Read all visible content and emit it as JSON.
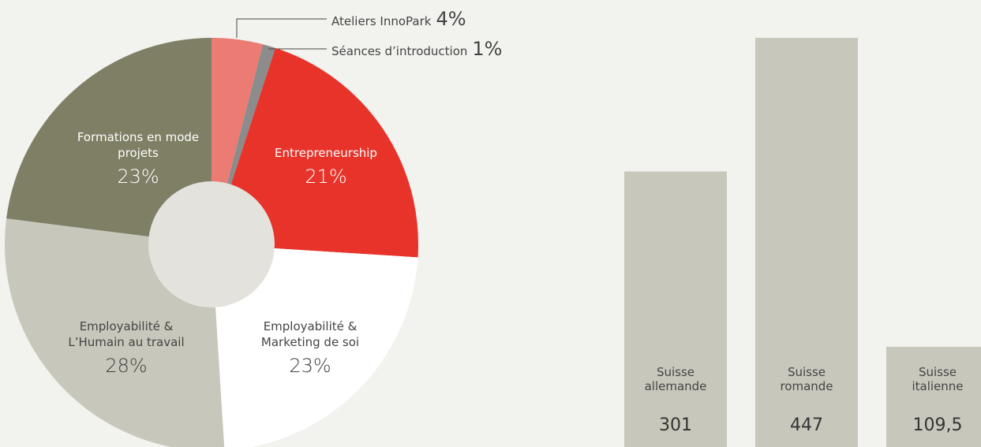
{
  "chart_data": [
    {
      "type": "pie",
      "categories": [
        "Ateliers InnoPark",
        "Séances d’introduction",
        "Entrepreneurship",
        "Employabilité & Marketing de soi",
        "Employabilité & L’Humain au travail",
        "Formations en mode projets"
      ],
      "values": [
        4,
        1,
        21,
        23,
        28,
        23
      ],
      "value_labels": [
        "4%",
        "1%",
        "21%",
        "23%",
        "28%",
        "23%"
      ],
      "colors": [
        "#ec7b74",
        "#8c8c8c",
        "#e8332a",
        "#ffffff",
        "#c8c7bb",
        "#7f7f66"
      ]
    },
    {
      "type": "bar",
      "categories": [
        "Suisse allemande",
        "Suisse romande",
        "Suisse italienne"
      ],
      "values": [
        301,
        447,
        109.5
      ],
      "value_labels": [
        "301",
        "447",
        "109,5"
      ],
      "color": "#c8c7bb"
    }
  ]
}
